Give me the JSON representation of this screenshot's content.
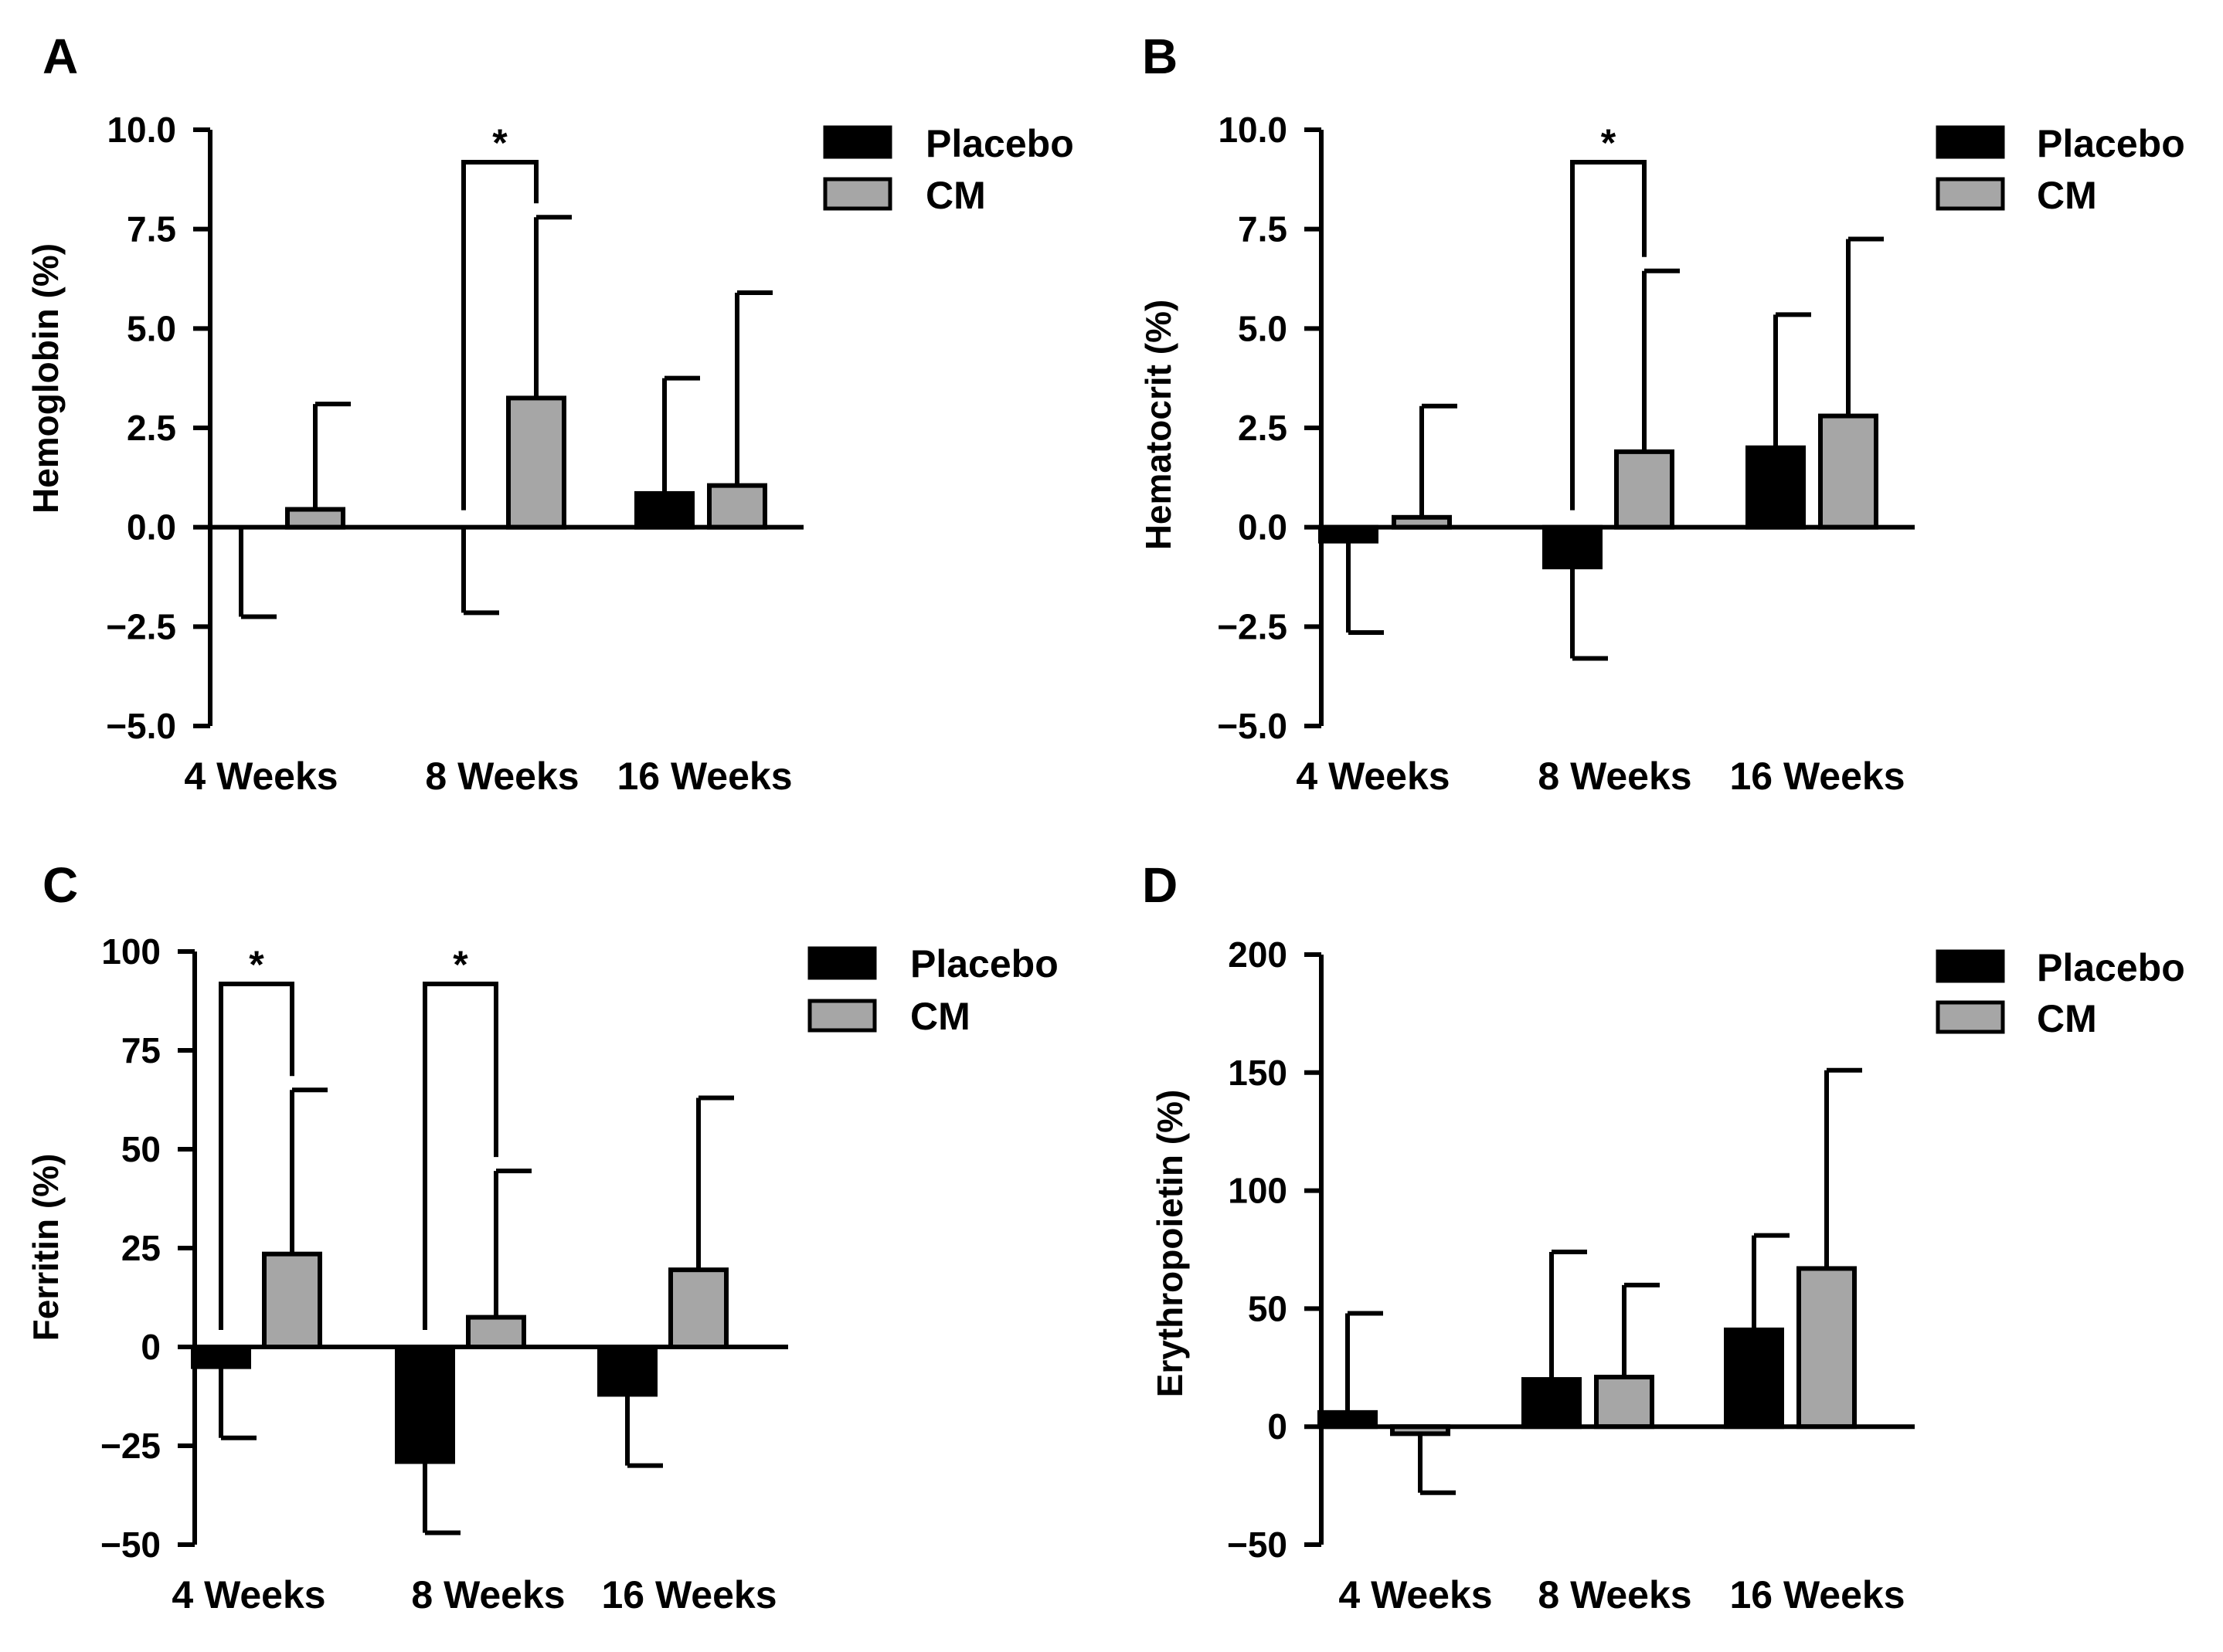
{
  "figure": {
    "background": "#ffffff"
  },
  "colors": {
    "placebo": "#000000",
    "cm": "#a6a6a6",
    "axis": "#000000"
  },
  "chart_data": [
    {
      "type": "bar",
      "panel": "A",
      "ylabel": "Hemoglobin (%)",
      "xlabel": "",
      "categories": [
        "4 Weeks",
        "8 Weeks",
        "16 Weeks"
      ],
      "ylim": [
        -5.0,
        10.0
      ],
      "yticks": [
        10.0,
        7.5,
        5.0,
        2.5,
        0.0,
        -2.5,
        -5.0
      ],
      "ytick_labels": [
        "10.0",
        "7.5",
        "5.0",
        "2.5",
        "0.0",
        "−2.5",
        "−5.0"
      ],
      "legend": [
        "Placebo",
        "CM"
      ],
      "legend_position": "top-right",
      "series": [
        {
          "name": "Placebo",
          "values": [
            0.0,
            0.0,
            0.85
          ],
          "error_tips": [
            -2.25,
            -2.15,
            3.75
          ]
        },
        {
          "name": "CM",
          "values": [
            0.45,
            3.25,
            1.05
          ],
          "error_tips": [
            3.1,
            7.8,
            5.9
          ]
        }
      ],
      "significance": [
        {
          "category": "8 Weeks",
          "label": "*"
        }
      ]
    },
    {
      "type": "bar",
      "panel": "B",
      "ylabel": "Hematocrit (%)",
      "xlabel": "",
      "categories": [
        "4 Weeks",
        "8 Weeks",
        "16 Weeks"
      ],
      "ylim": [
        -5.0,
        10.0
      ],
      "yticks": [
        10.0,
        7.5,
        5.0,
        2.5,
        0.0,
        -2.5,
        -5.0
      ],
      "ytick_labels": [
        "10.0",
        "7.5",
        "5.0",
        "2.5",
        "0.0",
        "−2.5",
        "−5.0"
      ],
      "legend": [
        "Placebo",
        "CM"
      ],
      "legend_position": "top-right",
      "series": [
        {
          "name": "Placebo",
          "values": [
            -0.35,
            -1.0,
            2.0
          ],
          "error_tips": [
            -2.65,
            -3.3,
            5.35
          ]
        },
        {
          "name": "CM",
          "values": [
            0.25,
            1.9,
            2.8
          ],
          "error_tips": [
            3.05,
            6.45,
            7.25
          ]
        }
      ],
      "significance": [
        {
          "category": "8 Weeks",
          "label": "*"
        }
      ]
    },
    {
      "type": "bar",
      "panel": "C",
      "ylabel": "Ferritin (%)",
      "xlabel": "",
      "categories": [
        "4 Weeks",
        "8 Weeks",
        "16 Weeks"
      ],
      "ylim": [
        -50,
        100
      ],
      "yticks": [
        100,
        75,
        50,
        25,
        0,
        -25,
        -50
      ],
      "ytick_labels": [
        "100",
        "75",
        "50",
        "25",
        "0",
        "−25",
        "−50"
      ],
      "legend": [
        "Placebo",
        "CM"
      ],
      "legend_position": "top-right",
      "series": [
        {
          "name": "Placebo",
          "values": [
            -5,
            -29,
            -12
          ],
          "error_tips": [
            -23,
            -47,
            -30
          ]
        },
        {
          "name": "CM",
          "values": [
            23.5,
            7.5,
            19.5
          ],
          "error_tips": [
            65,
            44.5,
            63
          ]
        }
      ],
      "significance": [
        {
          "category": "4 Weeks",
          "label": "*"
        },
        {
          "category": "8 Weeks",
          "label": "*"
        }
      ]
    },
    {
      "type": "bar",
      "panel": "D",
      "ylabel": "Erythropoietin (%)",
      "xlabel": "",
      "categories": [
        "4 Weeks",
        "8 Weeks",
        "16 Weeks"
      ],
      "ylim": [
        -50,
        200
      ],
      "yticks": [
        200,
        150,
        100,
        50,
        0,
        -50
      ],
      "ytick_labels": [
        "200",
        "150",
        "100",
        "50",
        "0",
        "−50"
      ],
      "legend": [
        "Placebo",
        "CM"
      ],
      "legend_position": "top-right",
      "series": [
        {
          "name": "Placebo",
          "values": [
            6,
            20,
            41
          ],
          "error_tips": [
            48,
            74,
            81
          ]
        },
        {
          "name": "CM",
          "values": [
            -3,
            21,
            67
          ],
          "error_tips": [
            -28,
            60,
            151
          ]
        }
      ],
      "significance": []
    }
  ]
}
